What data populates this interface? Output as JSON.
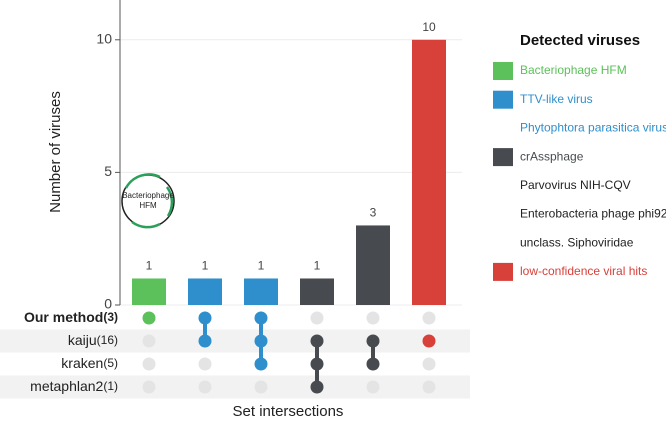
{
  "chart_data": {
    "type": "upset",
    "y_label": "Number of viruses",
    "x_label": "Set intersections",
    "ylim": [
      0,
      11.5
    ],
    "yticks": [
      0,
      5,
      10
    ],
    "grid": true,
    "values": [
      1,
      1,
      1,
      1,
      3,
      10
    ],
    "colors": [
      "#5cc15a",
      "#2f8fcc",
      "#2f8fcc",
      "#474b4f",
      "#474b4f",
      "#d8403a"
    ],
    "intersections": [
      [
        true,
        false,
        false,
        false
      ],
      [
        true,
        true,
        false,
        false
      ],
      [
        true,
        true,
        true,
        false
      ],
      [
        false,
        true,
        true,
        true
      ],
      [
        false,
        true,
        true,
        false
      ],
      [
        false,
        true,
        false,
        false
      ]
    ],
    "sets": {
      "names": [
        "Our method",
        "kaiju",
        "kraken",
        "metaphlan2"
      ],
      "values": [
        3,
        16,
        5,
        1
      ],
      "value_labels": [
        "(3)",
        "(16)",
        "(5)",
        "(1)"
      ],
      "bold": [
        true,
        false,
        false,
        false
      ]
    },
    "legend": {
      "title": "Detected viruses",
      "items": [
        {
          "name": "Bacteriophage HFM",
          "color": "#5cc15a",
          "swatch": true
        },
        {
          "name": "TTV-like virus",
          "color": "#2f8fcc",
          "swatch": true
        },
        {
          "name": "Phytophtora parasitica virus",
          "color": "#2f8fcc",
          "swatch": false
        },
        {
          "name": "crAssphage",
          "color": "#474b4f",
          "swatch": true
        },
        {
          "name": "Parvovirus NIH-CQV",
          "color": "#222222",
          "swatch": false
        },
        {
          "name": "Enterobacteria phage phi92",
          "color": "#222222",
          "swatch": false
        },
        {
          "name": "unclass. Siphoviridae",
          "color": "#222222",
          "swatch": false
        },
        {
          "name": "low-confidence viral hits",
          "color": "#d8403a",
          "swatch": true
        }
      ]
    },
    "icon_label": [
      "Bacteriophage",
      "HFM"
    ]
  }
}
